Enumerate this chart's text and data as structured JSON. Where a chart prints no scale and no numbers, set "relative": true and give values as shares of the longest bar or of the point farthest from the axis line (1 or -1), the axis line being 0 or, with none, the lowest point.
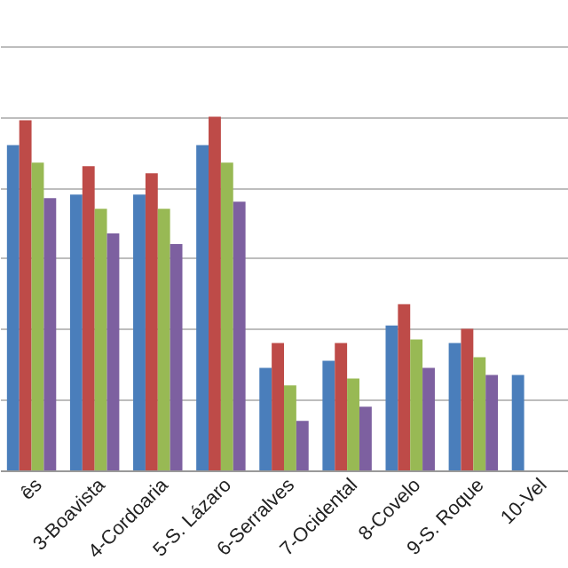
{
  "chart_data": {
    "type": "bar",
    "relative": true,
    "grid": true,
    "categories": [
      "ês",
      "3-Boavista",
      "4-Cordoaria",
      "5-S. Lázaro",
      "6-Serralves",
      "7-Ocidental",
      "8-Covelo",
      "9-S. Roque",
      "10-Vel"
    ],
    "series": [
      {
        "color": "#4a7ebb",
        "values": [
          0.92,
          0.78,
          0.78,
          0.92,
          0.29,
          0.31,
          0.41,
          0.36,
          0.27
        ]
      },
      {
        "color": "#be4b48",
        "values": [
          0.99,
          0.86,
          0.84,
          1,
          0.36,
          0.36,
          0.47,
          0.4,
          null
        ]
      },
      {
        "color": "#98b954",
        "values": [
          0.87,
          0.74,
          0.74,
          0.87,
          0.24,
          0.26,
          0.37,
          0.32,
          null
        ]
      },
      {
        "color": "#7d60a0",
        "values": [
          0.77,
          0.67,
          0.64,
          0.76,
          0.14,
          0.18,
          0.29,
          0.27,
          null
        ]
      }
    ]
  }
}
